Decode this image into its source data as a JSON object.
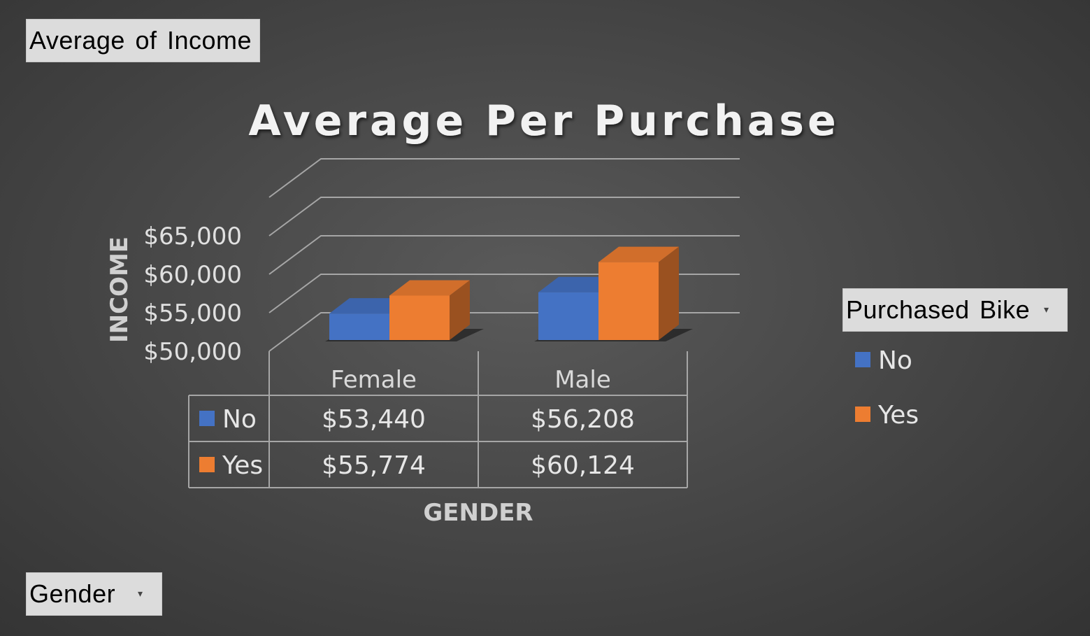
{
  "field_buttons": {
    "values": "Average of Income",
    "legend": "Purchased Bike",
    "axis": "Gender"
  },
  "colors": {
    "series_no": "#4472c4",
    "series_yes": "#ed7d31",
    "gridline": "#a6a6a6"
  },
  "chart_data": {
    "type": "bar",
    "title": "Average Per Purchase",
    "xlabel": "GENDER",
    "ylabel": "INCOME",
    "categories": [
      "Female",
      "Male"
    ],
    "series": [
      {
        "name": "No",
        "values": [
          53440,
          56208
        ],
        "labels": [
          "$53,440",
          "$56,208"
        ]
      },
      {
        "name": "Yes",
        "values": [
          55774,
          60124
        ],
        "labels": [
          "$55,774",
          "$60,124"
        ]
      }
    ],
    "ylim": [
      50000,
      65000
    ],
    "yticks": [
      50000,
      55000,
      60000,
      65000
    ],
    "ytick_labels": [
      "$50,000",
      "$55,000",
      "$60,000",
      "$65,000"
    ],
    "style": "3d-clustered-column",
    "data_table": true,
    "legend_position": "right",
    "grid": true
  }
}
